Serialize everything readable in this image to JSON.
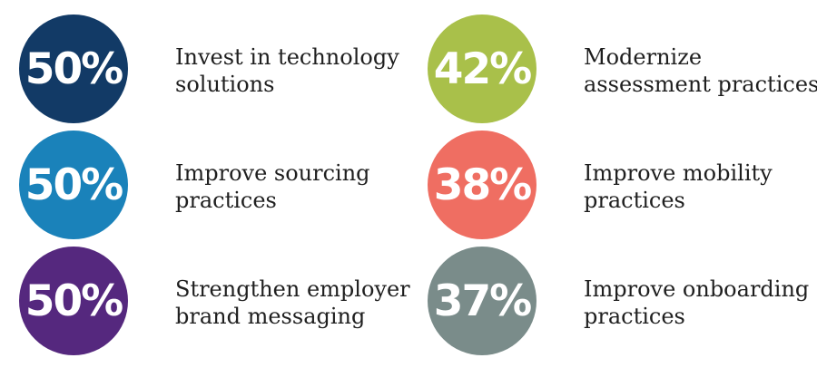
{
  "stats": [
    {
      "percent": "50%",
      "label": "Invest in technology\nsolutions",
      "color": "#123a66"
    },
    {
      "percent": "50%",
      "label": "Improve sourcing\npractices",
      "color": "#1a82ba"
    },
    {
      "percent": "50%",
      "label": "Strengthen employer\nbrand messaging",
      "color": "#55287e"
    },
    {
      "percent": "42%",
      "label": "Modernize\nassessment practices",
      "color": "#a9c04a"
    },
    {
      "percent": "38%",
      "label": "Improve mobility\npractices",
      "color": "#ef6e62"
    },
    {
      "percent": "37%",
      "label": "Improve onboarding\npractices",
      "color": "#7a8c8a"
    }
  ]
}
